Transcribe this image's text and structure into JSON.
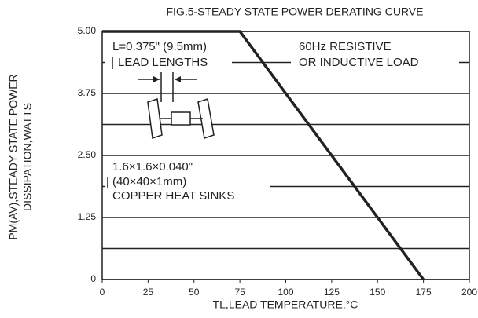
{
  "chart_data": {
    "type": "line",
    "title": "FIG.5-STEADY STATE POWER DERATING CURVE",
    "x_label": "TL,LEAD TEMPERATURE,°C",
    "y_label": [
      "PM(AV),STEADY STATE POWER",
      "DISSIPATION,WATTS"
    ],
    "x": [
      0,
      75,
      175
    ],
    "series": [
      {
        "name": "derating",
        "color": "#222222",
        "values": [
          5,
          5,
          0
        ]
      }
    ],
    "xlim": [
      0,
      200
    ],
    "xticks": [
      0,
      25,
      50,
      75,
      100,
      125,
      150,
      175,
      200
    ],
    "ylim": [
      0,
      5
    ],
    "yticks": [
      {
        "value": 0,
        "label": "0"
      },
      {
        "value": 1.25,
        "label": "1.25"
      },
      {
        "value": 2.5,
        "label": "2.50"
      },
      {
        "value": 3.75,
        "label": "3.75"
      },
      {
        "value": 5,
        "label": "5.00"
      }
    ],
    "yticks_minor": [
      0.625,
      1.875,
      3.125,
      4.375
    ],
    "grid": true,
    "annotations": [
      "L=0.375\" (9.5mm)",
      "LEAD LENGTHS",
      "60Hz RESISTIVE",
      "OR INDUCTIVE  LOAD",
      "1.6×1.6×0.040\"",
      "(40×40×1mm)",
      "COPPER HEAT SINKS"
    ]
  }
}
